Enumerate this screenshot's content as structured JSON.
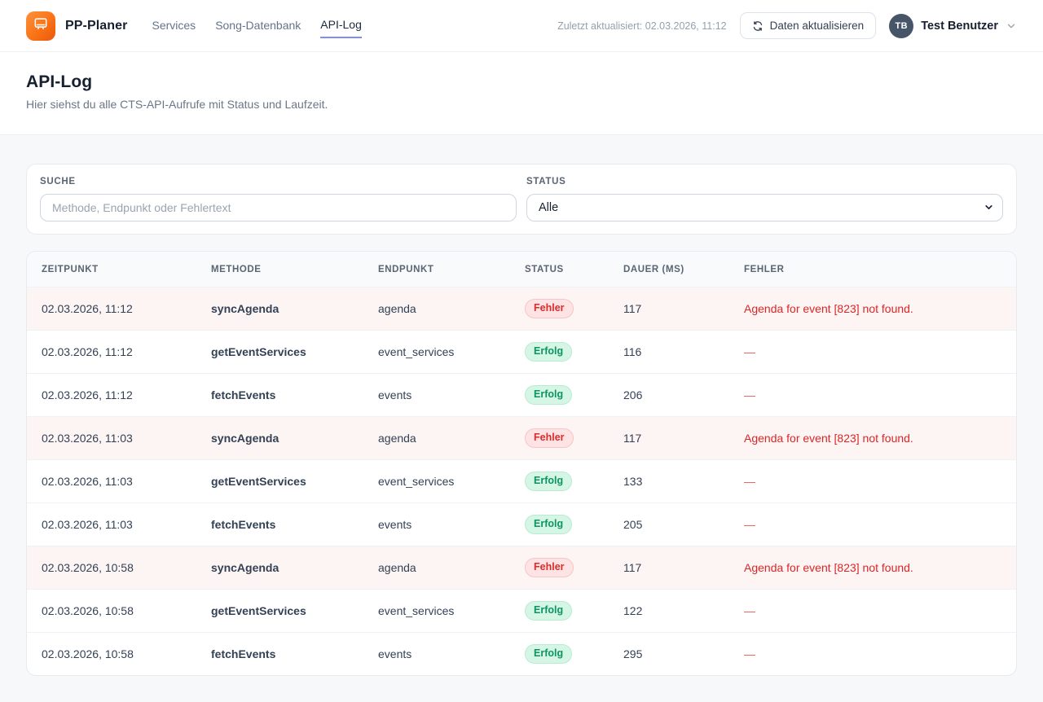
{
  "header": {
    "brand": "PP-Planer",
    "nav": [
      {
        "label": "Services",
        "active": false
      },
      {
        "label": "Song-Datenbank",
        "active": false
      },
      {
        "label": "API-Log",
        "active": true
      }
    ],
    "last_updated": "Zuletzt aktualisiert: 02.03.2026, 11:12",
    "refresh_button_label": "Daten aktualisieren",
    "user": {
      "initials": "TB",
      "name": "Test Benutzer"
    }
  },
  "page": {
    "title": "API-Log",
    "subtitle": "Hier siehst du alle CTS-API-Aufrufe mit Status und Laufzeit."
  },
  "filters": {
    "search_label": "SUCHE",
    "search_placeholder": "Methode, Endpunkt oder Fehlertext",
    "search_value": "",
    "status_label": "STATUS",
    "status_value": "Alle"
  },
  "table": {
    "columns": [
      "ZEITPUNKT",
      "METHODE",
      "ENDPUNKT",
      "STATUS",
      "DAUER (MS)",
      "FEHLER"
    ],
    "empty_error_placeholder": "—",
    "rows": [
      {
        "zeitpunkt": "02.03.2026, 11:12",
        "methode": "syncAgenda",
        "endpunkt": "agenda",
        "status": "Fehler",
        "dauer": "117",
        "fehler": "Agenda for event [823] not found."
      },
      {
        "zeitpunkt": "02.03.2026, 11:12",
        "methode": "getEventServices",
        "endpunkt": "event_services",
        "status": "Erfolg",
        "dauer": "116",
        "fehler": ""
      },
      {
        "zeitpunkt": "02.03.2026, 11:12",
        "methode": "fetchEvents",
        "endpunkt": "events",
        "status": "Erfolg",
        "dauer": "206",
        "fehler": ""
      },
      {
        "zeitpunkt": "02.03.2026, 11:03",
        "methode": "syncAgenda",
        "endpunkt": "agenda",
        "status": "Fehler",
        "dauer": "117",
        "fehler": "Agenda for event [823] not found."
      },
      {
        "zeitpunkt": "02.03.2026, 11:03",
        "methode": "getEventServices",
        "endpunkt": "event_services",
        "status": "Erfolg",
        "dauer": "133",
        "fehler": ""
      },
      {
        "zeitpunkt": "02.03.2026, 11:03",
        "methode": "fetchEvents",
        "endpunkt": "events",
        "status": "Erfolg",
        "dauer": "205",
        "fehler": ""
      },
      {
        "zeitpunkt": "02.03.2026, 10:58",
        "methode": "syncAgenda",
        "endpunkt": "agenda",
        "status": "Fehler",
        "dauer": "117",
        "fehler": "Agenda for event [823] not found."
      },
      {
        "zeitpunkt": "02.03.2026, 10:58",
        "methode": "getEventServices",
        "endpunkt": "event_services",
        "status": "Erfolg",
        "dauer": "122",
        "fehler": ""
      },
      {
        "zeitpunkt": "02.03.2026, 10:58",
        "methode": "fetchEvents",
        "endpunkt": "events",
        "status": "Erfolg",
        "dauer": "295",
        "fehler": ""
      }
    ]
  },
  "colors": {
    "brand_orange": "#f97316",
    "nav_underline": "#818cf8",
    "error_text": "#dc2626",
    "error_row_bg": "#fdf4f4",
    "success_text": "#0d9463"
  }
}
